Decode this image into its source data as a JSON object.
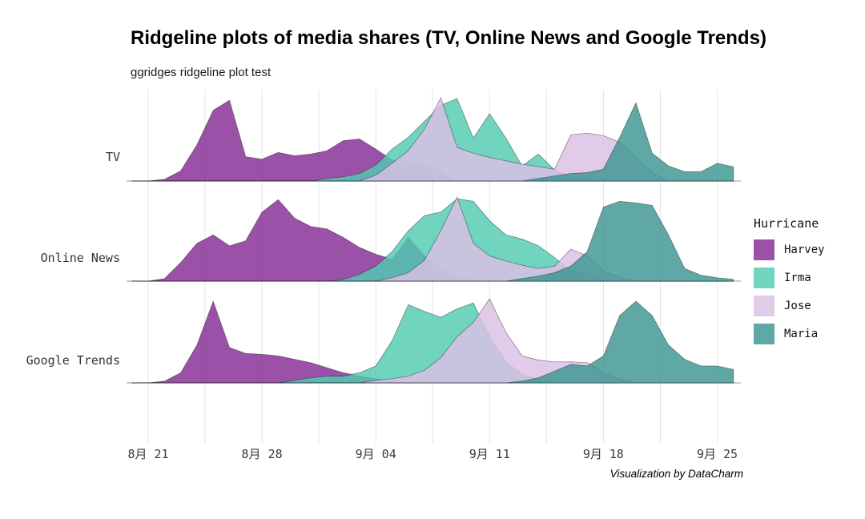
{
  "title": "Ridgeline plots of media shares (TV, Online News and Google Trends)",
  "subtitle": "ggridges ridgeline plot test",
  "caption": "Visualization by DataCharm",
  "legend": {
    "title": "Hurricane",
    "items": [
      {
        "label": "Harvey",
        "color": "#9b51a8"
      },
      {
        "label": "Irma",
        "color": "#70d4bf"
      },
      {
        "label": "Jose",
        "color": "#e2cbe9"
      },
      {
        "label": "Maria",
        "color": "#5fa8a5"
      }
    ]
  },
  "chart_data": {
    "type": "area",
    "variant": "ridgeline",
    "x": [
      "8/20",
      "8/21",
      "8/22",
      "8/23",
      "8/24",
      "8/25",
      "8/26",
      "8/27",
      "8/28",
      "8/29",
      "8/30",
      "8/31",
      "9/1",
      "9/2",
      "9/3",
      "9/4",
      "9/5",
      "9/6",
      "9/7",
      "9/8",
      "9/9",
      "9/10",
      "9/11",
      "9/12",
      "9/13",
      "9/14",
      "9/15",
      "9/16",
      "9/17",
      "9/18",
      "9/19",
      "9/20",
      "9/21",
      "9/22",
      "9/23",
      "9/24",
      "9/25",
      "9/26"
    ],
    "x_tick_labels": [
      "8月 21",
      "8月 28",
      "9月 04",
      "9月 11",
      "9月 18",
      "9月 25"
    ],
    "x_tick_positions": [
      1,
      8,
      15,
      22,
      29,
      36
    ],
    "minor_grid_interval_days": 3.5,
    "y_scale": "relative density height per media row, 0-1",
    "rows": [
      {
        "label": "TV",
        "series": [
          {
            "name": "Harvey",
            "values": [
              0,
              0,
              0.02,
              0.12,
              0.43,
              0.84,
              0.96,
              0.29,
              0.26,
              0.34,
              0.3,
              0.32,
              0.36,
              0.48,
              0.5,
              0.38,
              0.25,
              0.23,
              0.21,
              0.11,
              0,
              0,
              0,
              0,
              0,
              0,
              0,
              0,
              0,
              0,
              0,
              0,
              0,
              0,
              0,
              0,
              0,
              0
            ]
          },
          {
            "name": "Irma",
            "values": [
              0,
              0,
              0,
              0,
              0,
              0,
              0,
              0,
              0,
              0,
              0,
              0,
              0.03,
              0.05,
              0.09,
              0.19,
              0.38,
              0.52,
              0.71,
              0.9,
              0.98,
              0.51,
              0.8,
              0.51,
              0.18,
              0.32,
              0.13,
              0.05,
              0.02,
              0,
              0,
              0,
              0,
              0,
              0,
              0,
              0,
              0
            ]
          },
          {
            "name": "Jose",
            "values": [
              0,
              0,
              0,
              0,
              0,
              0,
              0,
              0,
              0,
              0,
              0,
              0,
              0,
              0,
              0,
              0.07,
              0.21,
              0.36,
              0.62,
              0.99,
              0.4,
              0.33,
              0.28,
              0.24,
              0.2,
              0.17,
              0.14,
              0.55,
              0.57,
              0.54,
              0.46,
              0.28,
              0.1,
              0,
              0,
              0,
              0,
              0
            ]
          },
          {
            "name": "Maria",
            "values": [
              0,
              0,
              0,
              0,
              0,
              0,
              0,
              0,
              0,
              0,
              0,
              0,
              0,
              0,
              0,
              0,
              0,
              0,
              0,
              0,
              0,
              0,
              0,
              0,
              0,
              0.03,
              0.06,
              0.09,
              0.1,
              0.14,
              0.52,
              0.93,
              0.33,
              0.18,
              0.11,
              0.11,
              0.21,
              0.17
            ]
          }
        ]
      },
      {
        "label": "Online News",
        "series": [
          {
            "name": "Harvey",
            "values": [
              0,
              0,
              0.03,
              0.22,
              0.45,
              0.55,
              0.42,
              0.48,
              0.82,
              0.97,
              0.75,
              0.65,
              0.62,
              0.52,
              0.4,
              0.32,
              0.26,
              0.52,
              0.3,
              0.15,
              0.05,
              0.02,
              0,
              0,
              0,
              0,
              0,
              0,
              0,
              0,
              0,
              0,
              0,
              0,
              0,
              0,
              0,
              0
            ]
          },
          {
            "name": "Irma",
            "values": [
              0,
              0,
              0,
              0,
              0,
              0,
              0,
              0,
              0,
              0,
              0,
              0,
              0,
              0.02,
              0.08,
              0.18,
              0.35,
              0.6,
              0.78,
              0.82,
              0.98,
              0.95,
              0.72,
              0.55,
              0.5,
              0.42,
              0.28,
              0.12,
              0.08,
              0.04,
              0,
              0,
              0,
              0,
              0,
              0,
              0,
              0
            ]
          },
          {
            "name": "Jose",
            "values": [
              0,
              0,
              0,
              0,
              0,
              0,
              0,
              0,
              0,
              0,
              0,
              0,
              0,
              0,
              0,
              0,
              0.04,
              0.1,
              0.25,
              0.6,
              1.0,
              0.45,
              0.3,
              0.24,
              0.19,
              0.15,
              0.18,
              0.38,
              0.3,
              0.12,
              0.04,
              0,
              0,
              0,
              0,
              0,
              0,
              0
            ]
          },
          {
            "name": "Maria",
            "values": [
              0,
              0,
              0,
              0,
              0,
              0,
              0,
              0,
              0,
              0,
              0,
              0,
              0,
              0,
              0,
              0,
              0,
              0,
              0,
              0,
              0,
              0,
              0,
              0,
              0.03,
              0.06,
              0.1,
              0.18,
              0.35,
              0.88,
              0.95,
              0.93,
              0.9,
              0.55,
              0.15,
              0.07,
              0.04,
              0.02
            ]
          }
        ]
      },
      {
        "label": "Google Trends",
        "series": [
          {
            "name": "Harvey",
            "values": [
              0,
              0,
              0.02,
              0.12,
              0.45,
              0.97,
              0.42,
              0.35,
              0.34,
              0.32,
              0.28,
              0.24,
              0.18,
              0.12,
              0.08,
              0.05,
              0.02,
              0,
              0,
              0,
              0,
              0,
              0,
              0,
              0,
              0,
              0,
              0,
              0,
              0,
              0,
              0,
              0,
              0,
              0,
              0,
              0,
              0
            ]
          },
          {
            "name": "Irma",
            "values": [
              0,
              0,
              0,
              0,
              0,
              0,
              0,
              0,
              0,
              0,
              0.03,
              0.06,
              0.08,
              0.08,
              0.12,
              0.2,
              0.5,
              0.93,
              0.85,
              0.78,
              0.88,
              0.95,
              0.55,
              0.25,
              0.1,
              0.04,
              0,
              0,
              0,
              0,
              0,
              0,
              0,
              0,
              0,
              0,
              0,
              0
            ]
          },
          {
            "name": "Jose",
            "values": [
              0,
              0,
              0,
              0,
              0,
              0,
              0,
              0,
              0,
              0,
              0,
              0,
              0,
              0,
              0,
              0.03,
              0.05,
              0.08,
              0.15,
              0.3,
              0.55,
              0.72,
              1.0,
              0.6,
              0.32,
              0.27,
              0.25,
              0.25,
              0.24,
              0.12,
              0.04,
              0,
              0,
              0,
              0,
              0,
              0,
              0
            ]
          },
          {
            "name": "Maria",
            "values": [
              0,
              0,
              0,
              0,
              0,
              0,
              0,
              0,
              0,
              0,
              0,
              0,
              0,
              0,
              0,
              0,
              0,
              0,
              0,
              0,
              0,
              0,
              0,
              0,
              0.02,
              0.06,
              0.14,
              0.22,
              0.2,
              0.32,
              0.8,
              0.97,
              0.8,
              0.45,
              0.28,
              0.2,
              0.2,
              0.16
            ]
          }
        ]
      }
    ],
    "series_colors": {
      "Harvey": "#852b95",
      "Irma": "#50cab1",
      "Jose": "#dcbfe4",
      "Maria": "#3c9591"
    },
    "fill_opacity": 0.82,
    "grid_color": "#e4e4e4",
    "baseline_color": "#9a9a9a",
    "legend_position": "right"
  }
}
